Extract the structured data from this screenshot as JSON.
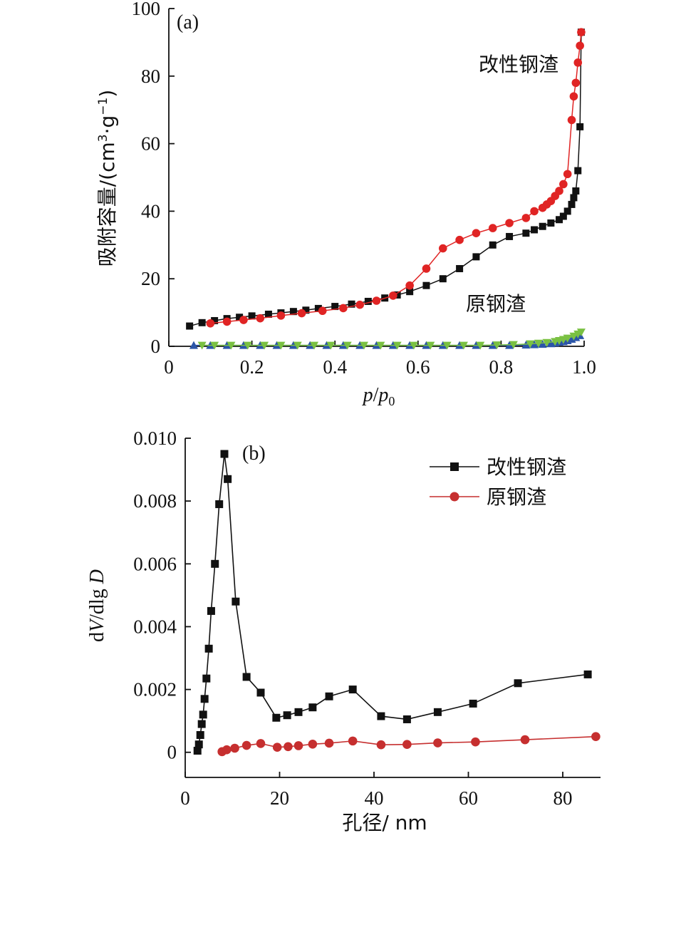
{
  "chart_data": [
    {
      "type": "line",
      "panel_label": "(a)",
      "xlabel_italic": "p",
      "xlabel_sep": "/",
      "xlabel_italic2": "p",
      "xlabel_sub": "0",
      "ylabel_main": "吸附容量/(cm",
      "ylabel_sup3": "3",
      "ylabel_mid": "·g",
      "ylabel_sup": "−1",
      "ylabel_end": ")",
      "xlim": [
        0,
        1.0
      ],
      "ylim": [
        0,
        100
      ],
      "xticks": [
        "0",
        "0.2",
        "0.4",
        "0.6",
        "0.8",
        "1.0"
      ],
      "yticks": [
        "0",
        "20",
        "40",
        "60",
        "80",
        "100"
      ],
      "grid": false,
      "annotations": [
        "改性钢渣",
        "原钢渣"
      ],
      "series": [
        {
          "name": "改性钢渣 (adsorption)",
          "color": "#111111",
          "marker": "square",
          "x": [
            0.05,
            0.08,
            0.11,
            0.14,
            0.17,
            0.2,
            0.24,
            0.27,
            0.3,
            0.33,
            0.36,
            0.4,
            0.44,
            0.48,
            0.52,
            0.55,
            0.58,
            0.62,
            0.66,
            0.7,
            0.74,
            0.78,
            0.82,
            0.86,
            0.88,
            0.9,
            0.92,
            0.94,
            0.95,
            0.96,
            0.97,
            0.975,
            0.98,
            0.985,
            0.99,
            0.993
          ],
          "y": [
            6,
            7,
            7.6,
            8.2,
            8.6,
            9,
            9.5,
            9.9,
            10.3,
            10.7,
            11.2,
            11.8,
            12.5,
            13.3,
            14.3,
            15.2,
            16.2,
            18,
            20,
            23,
            26.5,
            30,
            32.5,
            33.5,
            34.5,
            35.5,
            36.5,
            37.5,
            38.5,
            40,
            42,
            44,
            46,
            52,
            65,
            93
          ]
        },
        {
          "name": "改性钢渣 (desorption)",
          "color": "#e02424",
          "marker": "circle",
          "x": [
            0.993,
            0.99,
            0.985,
            0.98,
            0.975,
            0.97,
            0.96,
            0.95,
            0.94,
            0.93,
            0.92,
            0.91,
            0.9,
            0.88,
            0.86,
            0.82,
            0.78,
            0.74,
            0.7,
            0.66,
            0.62,
            0.58,
            0.54,
            0.5,
            0.46,
            0.42,
            0.37,
            0.32,
            0.27,
            0.22,
            0.18,
            0.14,
            0.1
          ],
          "y": [
            93,
            89,
            84,
            78,
            74,
            67,
            51,
            48,
            46,
            44.5,
            43,
            42,
            41,
            40,
            38,
            36.5,
            35,
            33.5,
            31.5,
            29,
            23,
            18,
            15,
            13.5,
            12.3,
            11.3,
            10.5,
            9.8,
            9.1,
            8.3,
            7.8,
            7.3,
            6.8
          ]
        },
        {
          "name": "原钢渣 (adsorption)",
          "color": "#2b55a8",
          "marker": "triangle-up",
          "x": [
            0.06,
            0.1,
            0.14,
            0.18,
            0.22,
            0.26,
            0.3,
            0.34,
            0.38,
            0.42,
            0.46,
            0.5,
            0.54,
            0.58,
            0.62,
            0.66,
            0.7,
            0.74,
            0.78,
            0.82,
            0.86,
            0.88,
            0.9,
            0.92,
            0.93,
            0.94,
            0.95,
            0.96,
            0.97,
            0.98,
            0.99
          ],
          "y": [
            0.3,
            0.3,
            0.3,
            0.3,
            0.3,
            0.3,
            0.3,
            0.3,
            0.3,
            0.3,
            0.3,
            0.3,
            0.3,
            0.3,
            0.3,
            0.3,
            0.3,
            0.3,
            0.3,
            0.3,
            0.4,
            0.5,
            0.6,
            0.8,
            1,
            1.2,
            1.4,
            1.7,
            2.1,
            2.6,
            3.2
          ]
        },
        {
          "name": "原钢渣 (desorption)",
          "color": "#7ac142",
          "marker": "triangle-down",
          "x": [
            0.993,
            0.985,
            0.975,
            0.96,
            0.95,
            0.94,
            0.93,
            0.91,
            0.89,
            0.87,
            0.83,
            0.79,
            0.75,
            0.71,
            0.67,
            0.63,
            0.59,
            0.55,
            0.51,
            0.47,
            0.43,
            0.39,
            0.35,
            0.31,
            0.27,
            0.23,
            0.19,
            0.15,
            0.11,
            0.08
          ],
          "y": [
            4.2,
            3.6,
            3,
            2.4,
            2,
            1.7,
            1.4,
            1.1,
            0.9,
            0.7,
            0.5,
            0.4,
            0.3,
            0.3,
            0.3,
            0.3,
            0.3,
            0.3,
            0.3,
            0.3,
            0.3,
            0.3,
            0.3,
            0.3,
            0.3,
            0.3,
            0.3,
            0.3,
            0.3,
            0.3
          ]
        }
      ]
    },
    {
      "type": "line",
      "panel_label": "(b)",
      "xlabel": "孔径/ nm",
      "ylabel_d1": "d",
      "ylabel_v": "V",
      "ylabel_mid": "/dlg ",
      "ylabel_D": "D",
      "xlim": [
        0,
        88
      ],
      "ylim": [
        -0.0008,
        0.01
      ],
      "xticks": [
        "0",
        "20",
        "40",
        "60",
        "80"
      ],
      "yticks": [
        "0",
        "0.002",
        "0.004",
        "0.006",
        "0.008",
        "0.010"
      ],
      "grid": false,
      "legend_position": "top-right",
      "series": [
        {
          "name": "改性钢渣",
          "color": "#111111",
          "marker": "square",
          "x": [
            2.6,
            2.9,
            3.2,
            3.5,
            3.8,
            4.1,
            4.5,
            5,
            5.5,
            6.3,
            7.2,
            8.3,
            9,
            10.7,
            13,
            16,
            19.3,
            21.6,
            24,
            27,
            30.5,
            35.5,
            41.5,
            47,
            53.5,
            61,
            70.5,
            85.3
          ],
          "y": [
            5e-05,
            0.00025,
            0.00055,
            0.0009,
            0.0012,
            0.0017,
            0.00235,
            0.0033,
            0.0045,
            0.006,
            0.0079,
            0.0095,
            0.0087,
            0.0048,
            0.0024,
            0.0019,
            0.0011,
            0.00118,
            0.00128,
            0.00143,
            0.00178,
            0.002,
            0.00115,
            0.00105,
            0.00128,
            0.00155,
            0.0022,
            0.00248
          ]
        },
        {
          "name": "原钢渣",
          "color": "#c62f2f",
          "marker": "circle",
          "x": [
            7.8,
            8.8,
            10.5,
            13,
            16,
            19.5,
            21.8,
            24,
            27,
            30.5,
            35.5,
            41.5,
            47,
            53.5,
            61.5,
            72,
            87
          ],
          "y": [
            2e-05,
            8e-05,
            0.00013,
            0.00022,
            0.00028,
            0.00016,
            0.00018,
            0.00021,
            0.00026,
            0.00029,
            0.00036,
            0.00024,
            0.00025,
            0.0003,
            0.00033,
            0.0004,
            0.0005
          ]
        }
      ]
    }
  ]
}
